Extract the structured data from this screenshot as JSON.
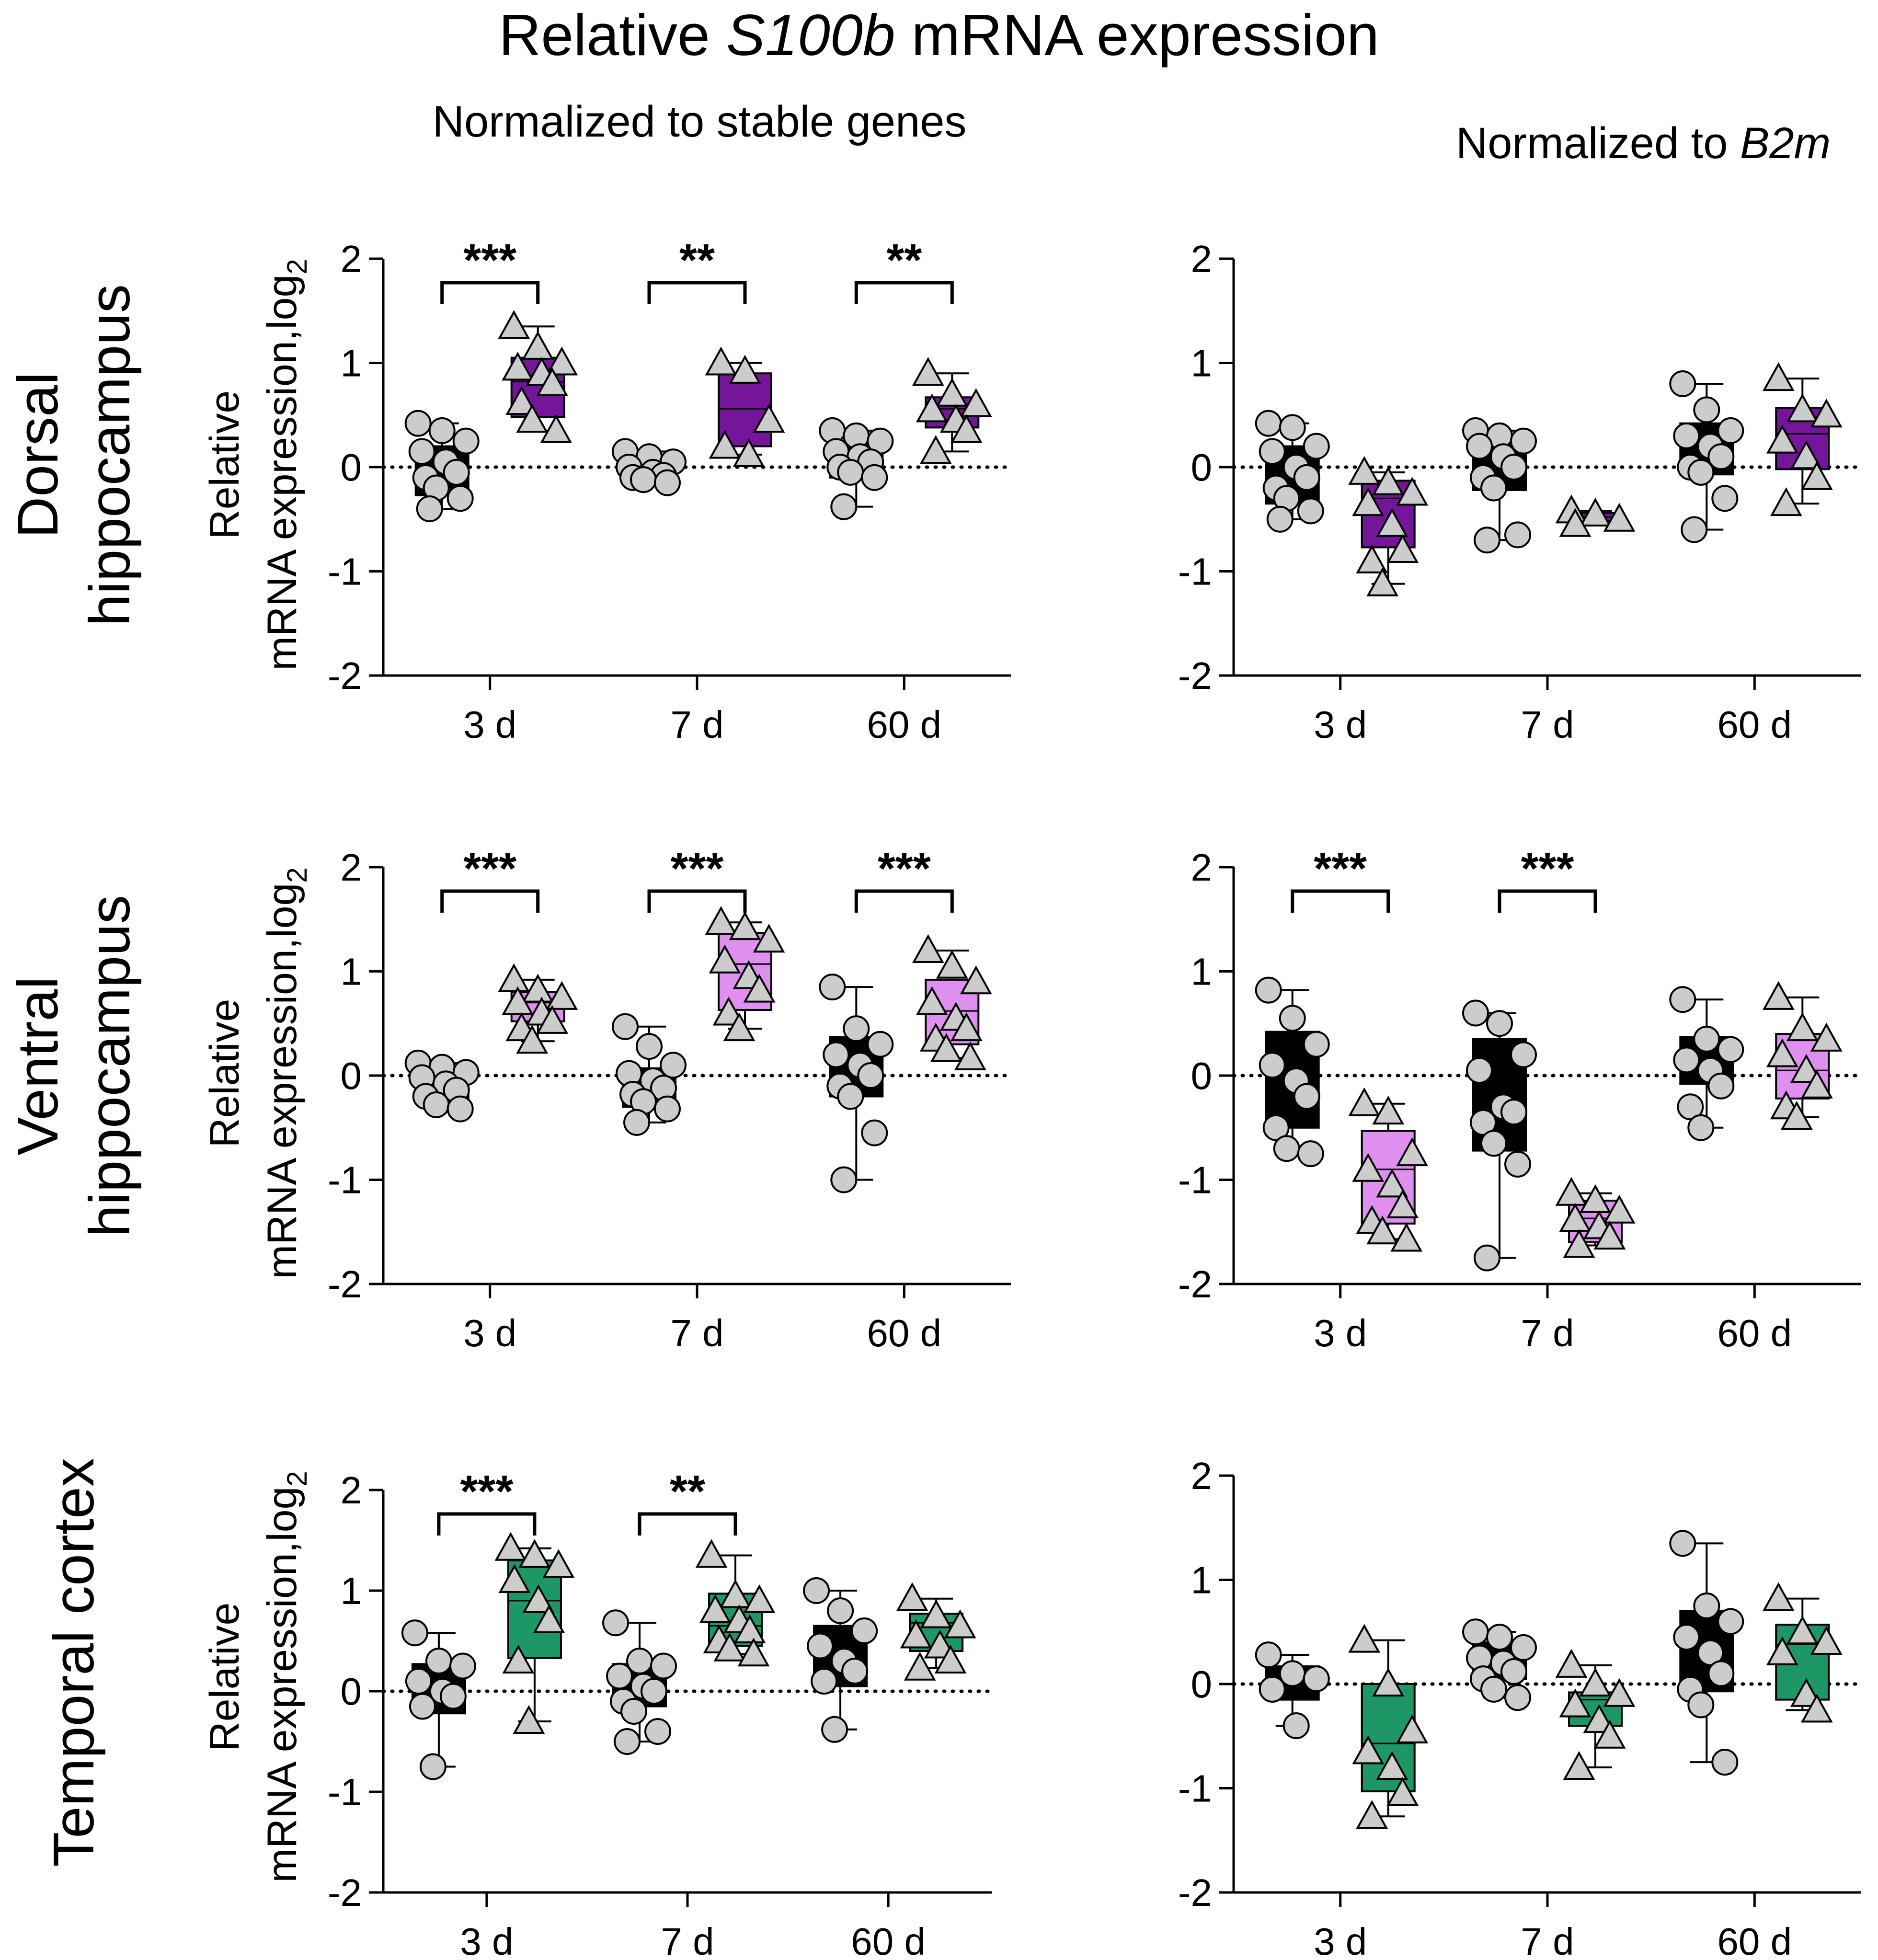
{
  "figure": {
    "title_prefix": "Relative ",
    "title_gene": "S100b",
    "title_suffix": " mRNA expression",
    "col_left": "Normalized to stable genes",
    "col_right_prefix": "Normalized to ",
    "col_right_gene": "B2m",
    "row_labels": [
      {
        "line1": "Dorsal",
        "line2": "hippocampus"
      },
      {
        "line1": "Ventral",
        "line2": "hippocampus"
      },
      {
        "line1": "Temporal cortex",
        "line2": ""
      }
    ],
    "ylabel_line1": "Relative",
    "ylabel_line2": "mRNA expression,log",
    "ylabel_sub": "2"
  },
  "colors": {
    "control": "#000000",
    "point_fill": "#cccccc",
    "dorsal": "#74159a",
    "ventral": "#df8ff0",
    "temporal": "#1d9766"
  },
  "chart_data": [
    {
      "id": "dorsal-stable",
      "type": "box",
      "region": "Dorsal hippocampus",
      "normalization": "Normalized to stable genes",
      "accent": "dorsal",
      "categories": [
        "3 d",
        "7 d",
        "60 d"
      ],
      "ylim": [
        -2,
        2
      ],
      "yticks": [
        2,
        1,
        0,
        -1,
        -2
      ],
      "reference_line": 0,
      "groups": [
        {
          "category": "3 d",
          "kind": "control",
          "box": {
            "min": -0.4,
            "q1": -0.27,
            "median": -0.05,
            "q3": 0.2,
            "max": 0.42
          },
          "points": [
            0.42,
            0.35,
            0.25,
            0.15,
            0.05,
            -0.05,
            -0.1,
            -0.2,
            -0.3,
            -0.4
          ]
        },
        {
          "category": "3 d",
          "kind": "treated",
          "box": {
            "min": 0.35,
            "q1": 0.48,
            "median": 0.82,
            "q3": 1.05,
            "max": 1.35
          },
          "points": [
            1.35,
            1.15,
            1.0,
            0.95,
            0.9,
            0.8,
            0.62,
            0.45,
            0.35
          ]
        },
        {
          "category": "7 d",
          "kind": "control",
          "box": {
            "min": -0.17,
            "q1": -0.12,
            "median": -0.05,
            "q3": 0.08,
            "max": 0.15
          },
          "points": [
            0.15,
            0.1,
            0.05,
            0.0,
            -0.05,
            -0.08,
            -0.1,
            -0.12,
            -0.15
          ]
        },
        {
          "category": "7 d",
          "kind": "treated",
          "box": {
            "min": 0.12,
            "q1": 0.2,
            "median": 0.56,
            "q3": 0.9,
            "max": 1.0
          },
          "points": [
            1.0,
            0.92,
            0.45,
            0.2,
            0.12
          ]
        },
        {
          "category": "60 d",
          "kind": "control",
          "box": {
            "min": -0.38,
            "q1": -0.1,
            "median": 0.08,
            "q3": 0.25,
            "max": 0.35
          },
          "points": [
            0.35,
            0.3,
            0.25,
            0.15,
            0.1,
            0.05,
            0.0,
            -0.05,
            -0.1,
            -0.38
          ]
        },
        {
          "category": "60 d",
          "kind": "treated",
          "box": {
            "min": 0.15,
            "q1": 0.38,
            "median": 0.56,
            "q3": 0.67,
            "max": 0.9
          },
          "points": [
            0.9,
            0.7,
            0.6,
            0.55,
            0.45,
            0.35,
            0.15
          ]
        }
      ],
      "significance": [
        {
          "category": "3 d",
          "label": "***"
        },
        {
          "category": "7 d",
          "label": "**"
        },
        {
          "category": "60 d",
          "label": "**"
        }
      ]
    },
    {
      "id": "dorsal-b2m",
      "type": "box",
      "region": "Dorsal hippocampus",
      "normalization": "Normalized to B2m",
      "accent": "dorsal",
      "categories": [
        "3 d",
        "7 d",
        "60 d"
      ],
      "ylim": [
        -2,
        2
      ],
      "yticks": [
        2,
        1,
        0,
        -1,
        -2
      ],
      "reference_line": 0,
      "groups": [
        {
          "category": "3 d",
          "kind": "control",
          "box": {
            "min": -0.5,
            "q1": -0.35,
            "median": -0.05,
            "q3": 0.2,
            "max": 0.42
          },
          "points": [
            0.42,
            0.38,
            0.2,
            0.15,
            0.0,
            -0.1,
            -0.2,
            -0.3,
            -0.42,
            -0.5
          ]
        },
        {
          "category": "3 d",
          "kind": "treated",
          "box": {
            "min": -1.12,
            "q1": -0.77,
            "median": -0.3,
            "q3": -0.13,
            "max": -0.05
          },
          "points": [
            -0.05,
            -0.15,
            -0.25,
            -0.35,
            -0.55,
            -0.8,
            -0.9,
            -1.12
          ]
        },
        {
          "category": "7 d",
          "kind": "control",
          "box": {
            "min": -0.7,
            "q1": -0.22,
            "median": 0.0,
            "q3": 0.25,
            "max": 0.35
          },
          "points": [
            0.35,
            0.3,
            0.25,
            0.2,
            0.1,
            0.0,
            -0.1,
            -0.2,
            -0.65,
            -0.7
          ]
        },
        {
          "category": "7 d",
          "kind": "treated",
          "box": {
            "min": -0.55,
            "q1": -0.52,
            "median": -0.48,
            "q3": -0.44,
            "max": -0.42
          },
          "points": [
            -0.42,
            -0.45,
            -0.5,
            -0.55
          ]
        },
        {
          "category": "60 d",
          "kind": "control",
          "box": {
            "min": -0.6,
            "q1": -0.07,
            "median": 0.1,
            "q3": 0.42,
            "max": 0.8
          },
          "points": [
            0.8,
            0.55,
            0.35,
            0.3,
            0.2,
            0.1,
            0.0,
            -0.05,
            -0.3,
            -0.6
          ]
        },
        {
          "category": "60 d",
          "kind": "treated",
          "box": {
            "min": -0.35,
            "q1": -0.02,
            "median": 0.32,
            "q3": 0.57,
            "max": 0.85
          },
          "points": [
            0.85,
            0.55,
            0.5,
            0.25,
            0.1,
            -0.1,
            -0.35
          ]
        }
      ],
      "significance": []
    },
    {
      "id": "ventral-stable",
      "type": "box",
      "region": "Ventral hippocampus",
      "normalization": "Normalized to stable genes",
      "accent": "ventral",
      "categories": [
        "3 d",
        "7 d",
        "60 d"
      ],
      "ylim": [
        -2,
        2
      ],
      "yticks": [
        2,
        1,
        0,
        -1,
        -2
      ],
      "reference_line": 0,
      "groups": [
        {
          "category": "3 d",
          "kind": "control",
          "box": {
            "min": -0.32,
            "q1": -0.22,
            "median": -0.05,
            "q3": 0.08,
            "max": 0.12
          },
          "points": [
            0.12,
            0.08,
            0.03,
            -0.02,
            -0.08,
            -0.14,
            -0.2,
            -0.28,
            -0.32
          ]
        },
        {
          "category": "3 d",
          "kind": "treated",
          "box": {
            "min": 0.33,
            "q1": 0.52,
            "median": 0.7,
            "q3": 0.8,
            "max": 0.92
          },
          "points": [
            0.92,
            0.82,
            0.75,
            0.7,
            0.6,
            0.52,
            0.45,
            0.33
          ]
        },
        {
          "category": "7 d",
          "kind": "control",
          "box": {
            "min": -0.45,
            "q1": -0.3,
            "median": -0.12,
            "q3": 0.07,
            "max": 0.47
          },
          "points": [
            0.47,
            0.28,
            0.1,
            0.02,
            -0.05,
            -0.12,
            -0.18,
            -0.25,
            -0.32,
            -0.45
          ]
        },
        {
          "category": "7 d",
          "kind": "treated",
          "box": {
            "min": 0.45,
            "q1": 0.63,
            "median": 1.07,
            "q3": 1.37,
            "max": 1.47
          },
          "points": [
            1.47,
            1.42,
            1.3,
            1.1,
            0.95,
            0.82,
            0.6,
            0.45
          ]
        },
        {
          "category": "60 d",
          "kind": "control",
          "box": {
            "min": -1.0,
            "q1": -0.2,
            "median": 0.02,
            "q3": 0.37,
            "max": 0.85
          },
          "points": [
            0.85,
            0.45,
            0.3,
            0.2,
            0.1,
            0.0,
            -0.1,
            -0.2,
            -0.55,
            -1.0
          ]
        },
        {
          "category": "60 d",
          "kind": "treated",
          "box": {
            "min": 0.17,
            "q1": 0.3,
            "median": 0.62,
            "q3": 0.92,
            "max": 1.2
          },
          "points": [
            1.2,
            1.05,
            0.9,
            0.7,
            0.55,
            0.45,
            0.35,
            0.25,
            0.17
          ]
        }
      ],
      "significance": [
        {
          "category": "3 d",
          "label": "***"
        },
        {
          "category": "7 d",
          "label": "***"
        },
        {
          "category": "60 d",
          "label": "***"
        }
      ]
    },
    {
      "id": "ventral-b2m",
      "type": "box",
      "region": "Ventral hippocampus",
      "normalization": "Normalized to B2m",
      "accent": "ventral",
      "categories": [
        "3 d",
        "7 d",
        "60 d"
      ],
      "ylim": [
        -2,
        2
      ],
      "yticks": [
        2,
        1,
        0,
        -1,
        -2
      ],
      "reference_line": 0,
      "groups": [
        {
          "category": "3 d",
          "kind": "control",
          "box": {
            "min": -0.75,
            "q1": -0.5,
            "median": -0.05,
            "q3": 0.42,
            "max": 0.82
          },
          "points": [
            0.82,
            0.55,
            0.3,
            0.1,
            -0.05,
            -0.2,
            -0.5,
            -0.7,
            -0.75
          ]
        },
        {
          "category": "3 d",
          "kind": "treated",
          "box": {
            "min": -1.57,
            "q1": -1.42,
            "median": -0.9,
            "q3": -0.53,
            "max": -0.27
          },
          "points": [
            -0.27,
            -0.35,
            -0.75,
            -0.9,
            -1.05,
            -1.25,
            -1.4,
            -1.5,
            -1.57
          ]
        },
        {
          "category": "7 d",
          "kind": "control",
          "box": {
            "min": -1.75,
            "q1": -0.72,
            "median": -0.3,
            "q3": 0.35,
            "max": 0.6
          },
          "points": [
            0.6,
            0.5,
            0.2,
            0.05,
            -0.3,
            -0.35,
            -0.45,
            -0.65,
            -0.85,
            -1.75
          ]
        },
        {
          "category": "7 d",
          "kind": "treated",
          "box": {
            "min": -1.63,
            "q1": -1.6,
            "median": -1.37,
            "q3": -1.2,
            "max": -1.13
          },
          "points": [
            -1.13,
            -1.2,
            -1.3,
            -1.38,
            -1.45,
            -1.55,
            -1.63
          ]
        },
        {
          "category": "60 d",
          "kind": "control",
          "box": {
            "min": -0.5,
            "q1": -0.08,
            "median": 0.18,
            "q3": 0.37,
            "max": 0.73
          },
          "points": [
            0.73,
            0.35,
            0.25,
            0.15,
            0.05,
            -0.1,
            -0.3,
            -0.5
          ]
        },
        {
          "category": "60 d",
          "kind": "treated",
          "box": {
            "min": -0.4,
            "q1": -0.22,
            "median": 0.05,
            "q3": 0.4,
            "max": 0.75
          },
          "points": [
            0.75,
            0.45,
            0.35,
            0.2,
            0.05,
            -0.1,
            -0.3,
            -0.4
          ]
        }
      ],
      "significance": [
        {
          "category": "3 d",
          "label": "***"
        },
        {
          "category": "7 d",
          "label": "***"
        }
      ]
    },
    {
      "id": "temporal-stable",
      "type": "box",
      "region": "Temporal cortex",
      "normalization": "Normalized to stable genes",
      "accent": "temporal",
      "categories": [
        "3 d",
        "7 d",
        "60 d"
      ],
      "ylim": [
        -2,
        2
      ],
      "yticks": [
        2,
        1,
        0,
        -1,
        -2
      ],
      "reference_line": 0,
      "groups": [
        {
          "category": "3 d",
          "kind": "control",
          "box": {
            "min": -0.75,
            "q1": -0.22,
            "median": -0.02,
            "q3": 0.27,
            "max": 0.58
          },
          "points": [
            0.58,
            0.3,
            0.25,
            0.1,
            0.0,
            -0.05,
            -0.15,
            -0.75
          ]
        },
        {
          "category": "3 d",
          "kind": "treated",
          "box": {
            "min": -0.3,
            "q1": 0.33,
            "median": 0.9,
            "q3": 1.3,
            "max": 1.42
          },
          "points": [
            1.42,
            1.35,
            1.25,
            1.1,
            0.9,
            0.7,
            0.3,
            -0.3
          ]
        },
        {
          "category": "7 d",
          "kind": "control",
          "box": {
            "min": -0.5,
            "q1": -0.15,
            "median": 0.05,
            "q3": 0.27,
            "max": 0.68
          },
          "points": [
            0.68,
            0.3,
            0.25,
            0.15,
            0.05,
            0.0,
            -0.1,
            -0.2,
            -0.4,
            -0.5
          ]
        },
        {
          "category": "7 d",
          "kind": "treated",
          "box": {
            "min": 0.37,
            "q1": 0.45,
            "median": 0.65,
            "q3": 0.97,
            "max": 1.35
          },
          "points": [
            1.35,
            0.95,
            0.9,
            0.8,
            0.7,
            0.6,
            0.5,
            0.42,
            0.37
          ]
        },
        {
          "category": "60 d",
          "kind": "control",
          "box": {
            "min": -0.38,
            "q1": 0.05,
            "median": 0.35,
            "q3": 0.65,
            "max": 1.0
          },
          "points": [
            1.0,
            0.8,
            0.6,
            0.45,
            0.3,
            0.2,
            0.1,
            -0.38
          ]
        },
        {
          "category": "60 d",
          "kind": "treated",
          "box": {
            "min": 0.23,
            "q1": 0.4,
            "median": 0.68,
            "q3": 0.77,
            "max": 0.92
          },
          "points": [
            0.92,
            0.75,
            0.65,
            0.55,
            0.45,
            0.3,
            0.23
          ]
        }
      ],
      "significance": [
        {
          "category": "3 d",
          "label": "***"
        },
        {
          "category": "7 d",
          "label": "**"
        }
      ]
    },
    {
      "id": "temporal-b2m",
      "type": "box",
      "region": "Temporal cortex",
      "normalization": "Normalized to B2m",
      "accent": "temporal",
      "categories": [
        "3 d",
        "7 d",
        "60 d"
      ],
      "ylim": [
        -2,
        2
      ],
      "yticks": [
        2,
        1,
        0,
        -1,
        -2
      ],
      "reference_line": 0,
      "groups": [
        {
          "category": "3 d",
          "kind": "control",
          "box": {
            "min": -0.4,
            "q1": -0.15,
            "median": 0.02,
            "q3": 0.17,
            "max": 0.28
          },
          "points": [
            0.28,
            0.1,
            0.05,
            -0.05,
            -0.4
          ]
        },
        {
          "category": "3 d",
          "kind": "treated",
          "box": {
            "min": -1.27,
            "q1": -1.03,
            "median": -0.57,
            "q3": 0.0,
            "max": 0.42
          },
          "points": [
            0.42,
            0.0,
            -0.45,
            -0.65,
            -0.8,
            -1.05,
            -1.27
          ]
        },
        {
          "category": "7 d",
          "kind": "control",
          "box": {
            "min": -0.13,
            "q1": 0.05,
            "median": 0.22,
            "q3": 0.4,
            "max": 0.5
          },
          "points": [
            0.5,
            0.45,
            0.35,
            0.25,
            0.2,
            0.12,
            0.05,
            -0.05,
            -0.13
          ]
        },
        {
          "category": "7 d",
          "kind": "treated",
          "box": {
            "min": -0.8,
            "q1": -0.4,
            "median": -0.15,
            "q3": -0.08,
            "max": 0.18
          },
          "points": [
            0.18,
            0.0,
            -0.1,
            -0.2,
            -0.35,
            -0.5,
            -0.8
          ]
        },
        {
          "category": "60 d",
          "kind": "control",
          "box": {
            "min": -0.75,
            "q1": -0.07,
            "median": 0.35,
            "q3": 0.7,
            "max": 1.35
          },
          "points": [
            1.35,
            0.75,
            0.6,
            0.45,
            0.3,
            0.1,
            -0.05,
            -0.2,
            -0.75
          ]
        },
        {
          "category": "60 d",
          "kind": "treated",
          "box": {
            "min": -0.25,
            "q1": -0.15,
            "median": 0.38,
            "q3": 0.57,
            "max": 0.82
          },
          "points": [
            0.82,
            0.5,
            0.4,
            0.3,
            -0.1,
            -0.25
          ]
        }
      ],
      "significance": []
    }
  ]
}
